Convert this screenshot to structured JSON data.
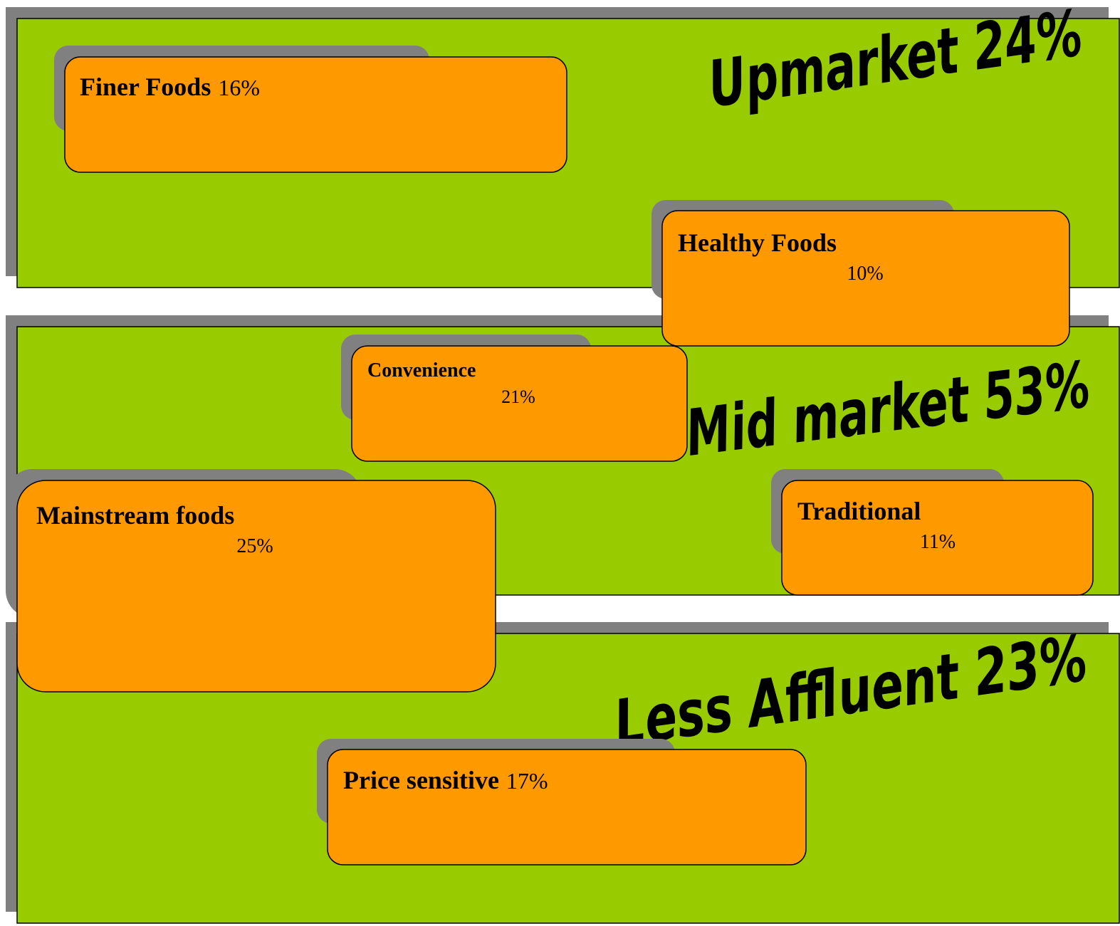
{
  "segments": [
    {
      "label": "Upmarket 24%",
      "groups": [
        {
          "name": "Finer Foods",
          "share": "16%"
        },
        {
          "name": "Healthy Foods",
          "share": "10%"
        }
      ]
    },
    {
      "label": "Mid market 53%",
      "groups": [
        {
          "name": "Convenience",
          "share": "21%"
        },
        {
          "name": "Mainstream foods",
          "share": "25%"
        },
        {
          "name": "Traditional",
          "share": "11%"
        }
      ]
    },
    {
      "label": "Less Affluent 23%",
      "groups": [
        {
          "name": "Price sensitive",
          "share": "17%"
        }
      ]
    }
  ]
}
